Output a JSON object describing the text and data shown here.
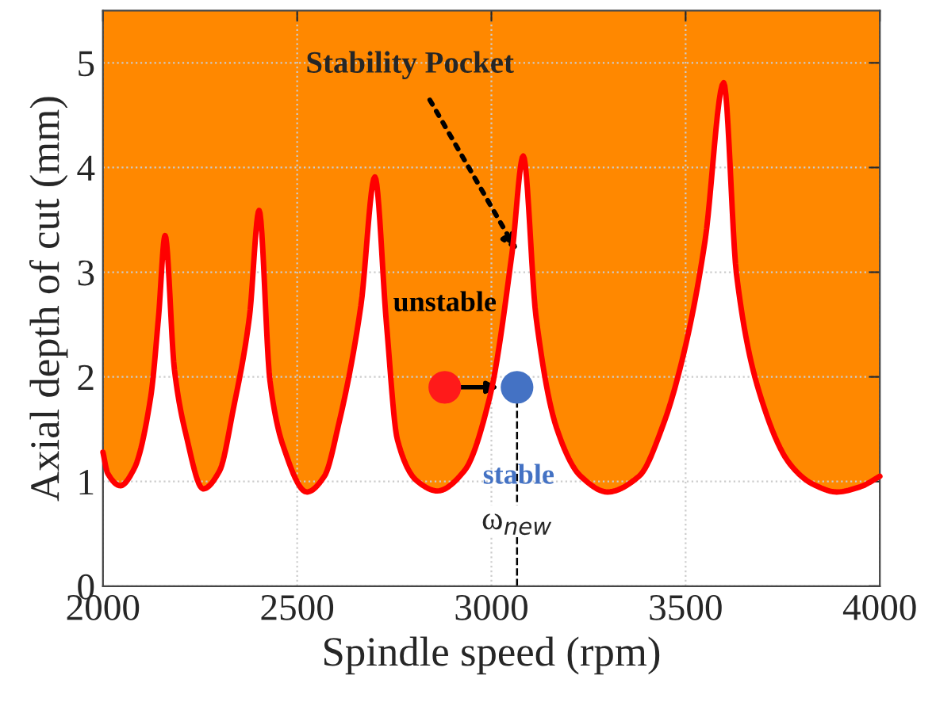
{
  "chart_data": {
    "type": "line",
    "xlabel": "Spindle speed (rpm)",
    "ylabel": "Axial depth of cut (mm)",
    "xlim": [
      2000,
      4000
    ],
    "xticks": [
      2000,
      2500,
      3000,
      3500,
      4000
    ],
    "ylim": [
      0,
      5.5
    ],
    "yticks": [
      0,
      1,
      2,
      3,
      4,
      5
    ],
    "grid": true,
    "series": [
      {
        "color": "#ff0000",
        "x": [
          2000,
          2012,
          2045,
          2080,
          2123,
          2143,
          2160,
          2184,
          2213,
          2258,
          2300,
          2336,
          2377,
          2402,
          2430,
          2463,
          2525,
          2570,
          2607,
          2664,
          2700,
          2730,
          2758,
          2810,
          2861,
          2930,
          2996,
          3053,
          3082,
          3115,
          3168,
          3230,
          3299,
          3380,
          3443,
          3500,
          3550,
          3598,
          3631,
          3689,
          3770,
          3830,
          3889,
          3950,
          4000
        ],
        "values": [
          1.28,
          1.08,
          0.96,
          1.12,
          1.81,
          2.57,
          3.35,
          2.07,
          1.46,
          0.93,
          1.1,
          1.7,
          2.57,
          3.59,
          1.96,
          1.35,
          0.9,
          1.05,
          1.55,
          2.68,
          3.91,
          2.5,
          1.4,
          1.0,
          0.91,
          1.1,
          1.81,
          3.18,
          4.11,
          2.57,
          1.51,
          1.05,
          0.9,
          1.05,
          1.55,
          2.3,
          3.3,
          4.81,
          2.98,
          1.86,
          1.16,
          0.97,
          0.9,
          0.95,
          1.05
        ],
        "lower": [
          1.28,
          1.08,
          0.96,
          1.12,
          1.81,
          2.57,
          3.35,
          2.07,
          1.46,
          0.93,
          1.1,
          1.7,
          2.57,
          3.59,
          1.96,
          1.35,
          0.9,
          1.05,
          1.55,
          2.68,
          3.91,
          2.5,
          1.4,
          1.0,
          0.91,
          1.1,
          1.81,
          3.18,
          4.11,
          2.57,
          1.51,
          1.05,
          0.9,
          1.05,
          1.55,
          2.3,
          3.3,
          4.81,
          2.98,
          1.86,
          1.16,
          0.97,
          0.9,
          0.95,
          1.05
        ],
        "upper": [
          5.5,
          5.5,
          5.5,
          5.5,
          5.5,
          5.5,
          5.5,
          5.5,
          5.5,
          5.5,
          5.5,
          5.5,
          5.5,
          5.5,
          5.5,
          5.5,
          5.5,
          5.5,
          5.5,
          5.5,
          5.5,
          5.5,
          5.5,
          5.5,
          5.5,
          5.5,
          5.5,
          5.5,
          5.5,
          5.5,
          5.5,
          5.5,
          5.5,
          5.5,
          5.5,
          5.5,
          5.5,
          5.5,
          5.5,
          5.5,
          5.5,
          5.5,
          5.5,
          5.5,
          5.5
        ]
      },
      {
        "type": "scatter",
        "x": [
          2880,
          3066
        ],
        "values": [
          1.9,
          1.9
        ],
        "colors": [
          "#ff1a1a",
          "#4472c4"
        ]
      }
    ],
    "ref_lines": [
      {
        "axis": "x",
        "value": 3066,
        "label": "ω$_{new}$",
        "line_style": "dashed",
        "color": "#000000"
      }
    ],
    "annotations": [
      {
        "text": "Stability Pocket",
        "x": 3066,
        "y": 3.2
      },
      "unstable",
      "stable"
    ]
  }
}
